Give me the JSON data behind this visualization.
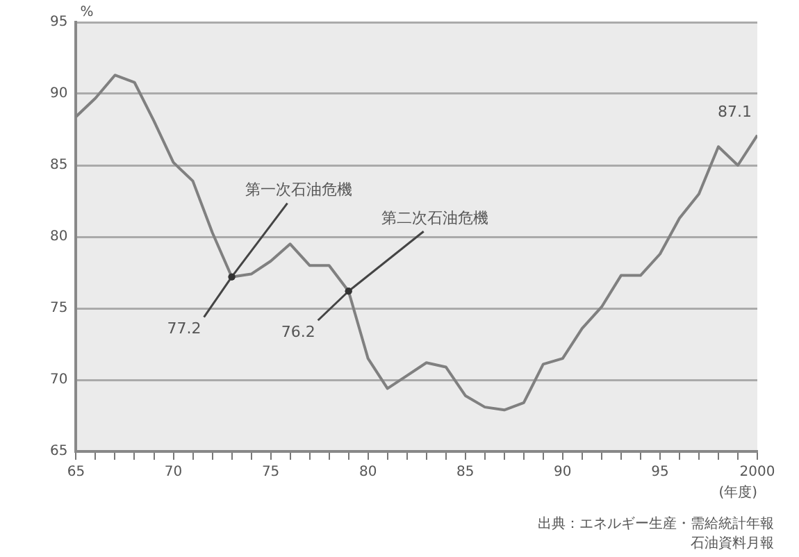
{
  "chart_data": {
    "type": "line",
    "ylabel": "%",
    "xlabel": "(年度)",
    "x": [
      1965,
      1966,
      1967,
      1968,
      1969,
      1970,
      1971,
      1972,
      1973,
      1974,
      1975,
      1976,
      1977,
      1978,
      1979,
      1980,
      1981,
      1982,
      1983,
      1984,
      1985,
      1986,
      1987,
      1988,
      1989,
      1990,
      1991,
      1992,
      1993,
      1994,
      1995,
      1996,
      1997,
      1998,
      1999,
      2000
    ],
    "series": [
      {
        "color": "#808080",
        "values": [
          88.4,
          89.7,
          91.3,
          90.8,
          88.1,
          85.2,
          83.9,
          80.3,
          77.2,
          77.4,
          78.3,
          79.5,
          78.0,
          78.0,
          76.2,
          71.5,
          69.4,
          70.3,
          71.2,
          70.9,
          68.9,
          68.1,
          67.9,
          68.4,
          71.1,
          71.5,
          73.6,
          75.1,
          77.3,
          77.3,
          78.8,
          81.3,
          83.0,
          86.3,
          85.0,
          87.1
        ]
      }
    ],
    "xlim": [
      1965,
      2000
    ],
    "xticks": [
      {
        "value": 1965,
        "label": "65"
      },
      {
        "value": 1966,
        "label": null
      },
      {
        "value": 1967,
        "label": null
      },
      {
        "value": 1968,
        "label": null
      },
      {
        "value": 1969,
        "label": null
      },
      {
        "value": 1970,
        "label": "70"
      },
      {
        "value": 1971,
        "label": null
      },
      {
        "value": 1972,
        "label": null
      },
      {
        "value": 1973,
        "label": null
      },
      {
        "value": 1974,
        "label": null
      },
      {
        "value": 1975,
        "label": "75"
      },
      {
        "value": 1976,
        "label": null
      },
      {
        "value": 1977,
        "label": null
      },
      {
        "value": 1978,
        "label": null
      },
      {
        "value": 1979,
        "label": null
      },
      {
        "value": 1980,
        "label": "80"
      },
      {
        "value": 1981,
        "label": null
      },
      {
        "value": 1982,
        "label": null
      },
      {
        "value": 1983,
        "label": null
      },
      {
        "value": 1984,
        "label": null
      },
      {
        "value": 1985,
        "label": "85"
      },
      {
        "value": 1986,
        "label": null
      },
      {
        "value": 1987,
        "label": null
      },
      {
        "value": 1988,
        "label": null
      },
      {
        "value": 1989,
        "label": null
      },
      {
        "value": 1990,
        "label": "90"
      },
      {
        "value": 1991,
        "label": null
      },
      {
        "value": 1992,
        "label": null
      },
      {
        "value": 1993,
        "label": null
      },
      {
        "value": 1994,
        "label": null
      },
      {
        "value": 1995,
        "label": "95"
      },
      {
        "value": 1996,
        "label": null
      },
      {
        "value": 1997,
        "label": null
      },
      {
        "value": 1998,
        "label": null
      },
      {
        "value": 1999,
        "label": null
      },
      {
        "value": 2000,
        "label": "2000"
      }
    ],
    "ylim": [
      65,
      95
    ],
    "yticks": [
      65,
      70,
      75,
      80,
      85,
      90,
      95
    ],
    "grid": "y",
    "marker": "none",
    "line_style": "solid",
    "legend": false,
    "annotations": [
      {
        "text": "第一次石油危機",
        "x": 1973,
        "y": 77.2
      },
      {
        "text": "77.2",
        "x": 1973,
        "y": 77.2
      },
      {
        "text": "第二次石油危機",
        "x": 1979,
        "y": 76.2
      },
      {
        "text": "76.2",
        "x": 1979,
        "y": 76.2
      },
      {
        "text": "87.1",
        "x": 2000,
        "y": 87.1
      },
      "出典：エネルギー生産・需給統計年報",
      "石油資料月報"
    ]
  }
}
